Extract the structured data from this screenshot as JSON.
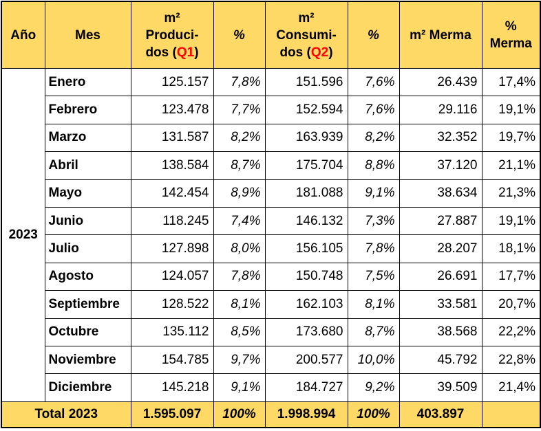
{
  "table": {
    "header": {
      "year": "Año",
      "month": "Mes",
      "produced": [
        "m²",
        "Produci-",
        "dos (",
        "Q1",
        ")"
      ],
      "produced_pct": "%",
      "consumed": [
        "m²",
        "Consumi-",
        "dos (",
        "Q2",
        ")"
      ],
      "consumed_pct": "%",
      "waste": "m² Merma",
      "waste_pct": [
        "%",
        "Merma"
      ]
    },
    "year": "2023",
    "rows": [
      [
        "Enero",
        "125.157",
        "7,8%",
        "151.596",
        "7,6%",
        "26.439",
        "17,4%"
      ],
      [
        "Febrero",
        "123.478",
        "7,7%",
        "152.594",
        "7,6%",
        "29.116",
        "19,1%"
      ],
      [
        "Marzo",
        "131.587",
        "8,2%",
        "163.939",
        "8,2%",
        "32.352",
        "19,7%"
      ],
      [
        "Abril",
        "138.584",
        "8,7%",
        "175.704",
        "8,8%",
        "37.120",
        "21,1%"
      ],
      [
        "Mayo",
        "142.454",
        "8,9%",
        "181.088",
        "9,1%",
        "38.634",
        "21,3%"
      ],
      [
        "Junio",
        "118.245",
        "7,4%",
        "146.132",
        "7,3%",
        "27.887",
        "19,1%"
      ],
      [
        "Julio",
        "127.898",
        "8,0%",
        "156.105",
        "7,8%",
        "28.207",
        "18,1%"
      ],
      [
        "Agosto",
        "124.057",
        "7,8%",
        "150.748",
        "7,5%",
        "26.691",
        "17,7%"
      ],
      [
        "Septiembre",
        "128.522",
        "8,1%",
        "162.103",
        "8,1%",
        "33.581",
        "20,7%"
      ],
      [
        "Octubre",
        "135.112",
        "8,5%",
        "173.680",
        "8,7%",
        "38.568",
        "22,2%"
      ],
      [
        "Noviembre",
        "154.785",
        "9,7%",
        "200.577",
        "10,0%",
        "45.792",
        "22,8%"
      ],
      [
        "Diciembre",
        "145.218",
        "9,1%",
        "184.727",
        "9,2%",
        "39.509",
        "21,4%"
      ]
    ],
    "total": [
      "Total 2023",
      "1.595.097",
      "100%",
      "1.998.994",
      "100%",
      "403.897"
    ]
  }
}
